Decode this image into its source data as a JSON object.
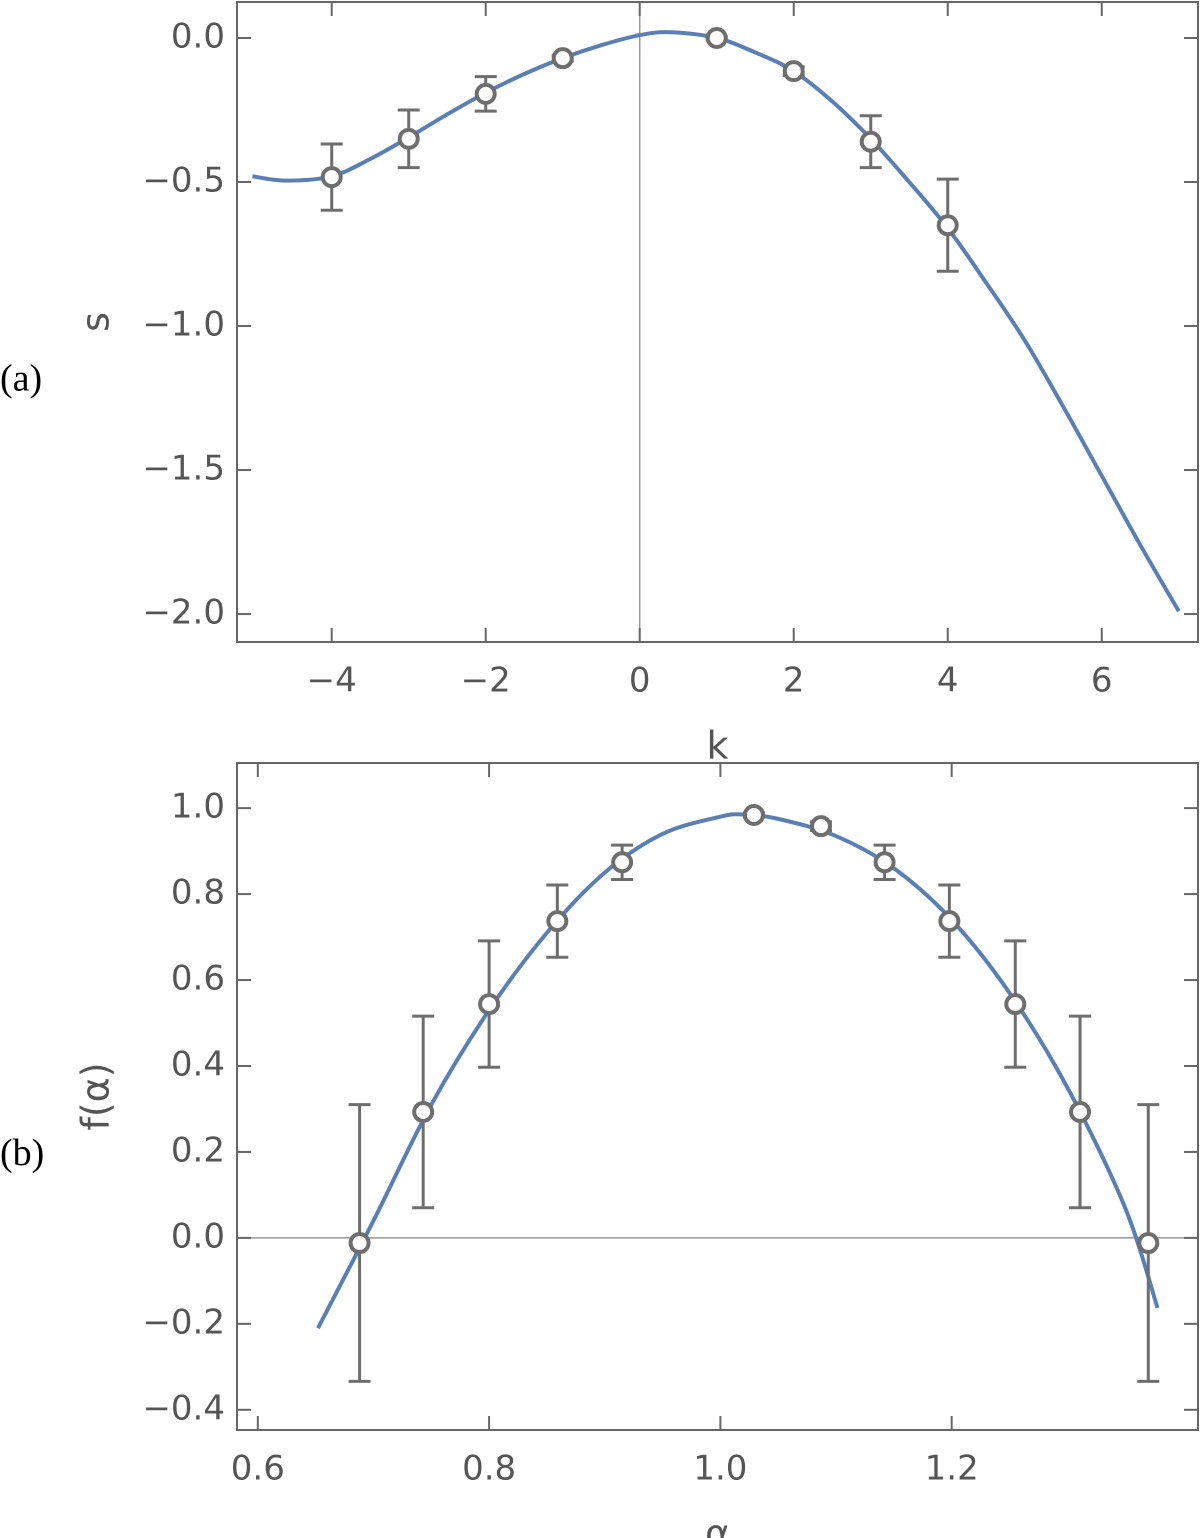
{
  "chart_data": [
    {
      "type": "errorbar",
      "panel_label": "(a)",
      "xlabel": "k",
      "ylabel": "s",
      "point_color": "#6e6e6e",
      "line_color": "#5a7fb5",
      "xlim": [
        -5.23,
        7.25
      ],
      "ylim": [
        -2.097,
        0.125
      ],
      "xticks": [
        {
          "value": -4,
          "label": "−4"
        },
        {
          "value": -2,
          "label": "−2"
        },
        0,
        2,
        4,
        6
      ],
      "yticks": [
        {
          "value": 0,
          "label": "0.0"
        },
        {
          "value": -0.5,
          "label": "−0.5"
        },
        {
          "value": -1,
          "label": "−1.0"
        },
        {
          "value": -1.5,
          "label": "−1.5"
        },
        {
          "value": -2,
          "label": "−2.0"
        }
      ],
      "points": {
        "x": [
          -4,
          -3,
          -2,
          -1,
          1,
          2,
          3,
          4
        ],
        "y": [
          -0.483,
          -0.35,
          -0.194,
          -0.07,
          0.0,
          -0.115,
          -0.36,
          -0.65
        ],
        "err": [
          0.115,
          0.1,
          0.06,
          0.01,
          0.005,
          0.015,
          0.09,
          0.16
        ]
      },
      "fit": {
        "x": [
          -5.03,
          -4.6,
          -4,
          -3.5,
          -3,
          -2.5,
          -2,
          -1.5,
          -1,
          -0.5,
          0,
          0.4,
          1,
          1.5,
          2,
          2.5,
          3,
          3.5,
          4,
          4.5,
          5,
          5.5,
          6,
          6.5,
          7
        ],
        "y": [
          -0.48,
          -0.495,
          -0.48,
          -0.42,
          -0.345,
          -0.265,
          -0.19,
          -0.125,
          -0.07,
          -0.025,
          0.01,
          0.02,
          0.0,
          -0.05,
          -0.115,
          -0.22,
          -0.35,
          -0.5,
          -0.66,
          -0.85,
          -1.05,
          -1.28,
          -1.52,
          -1.76,
          -1.99
        ]
      }
    },
    {
      "type": "errorbar",
      "panel_label": "(b)",
      "xlabel": "α",
      "ylabel": "f(α)",
      "point_color": "#6e6e6e",
      "line_color": "#5a7fb5",
      "xlim": [
        0.582,
        1.413
      ],
      "ylim": [
        -0.447,
        1.105
      ],
      "xticks": [
        0.6,
        0.8,
        {
          "value": 1,
          "label": "1.0"
        },
        1.2
      ],
      "yticks": [
        {
          "value": 1,
          "label": "1.0"
        },
        0.8,
        0.6,
        0.4,
        0.2,
        {
          "value": 0,
          "label": "0.0"
        },
        {
          "value": -0.2,
          "label": "−0.2"
        },
        {
          "value": -0.4,
          "label": "−0.4"
        }
      ],
      "points": {
        "x": [
          0.688,
          0.743,
          0.8,
          0.859,
          0.915,
          1.029,
          1.087,
          1.142,
          1.198,
          1.255,
          1.311,
          1.37
        ],
        "y": [
          -0.012,
          0.293,
          0.544,
          0.737,
          0.874,
          0.984,
          0.958,
          0.874,
          0.737,
          0.544,
          0.293,
          -0.012
        ],
        "err": [
          0.322,
          0.223,
          0.147,
          0.084,
          0.04,
          0.005,
          0.01,
          0.04,
          0.084,
          0.147,
          0.223,
          0.322
        ]
      },
      "fit": {
        "x": [
          0.652,
          0.7,
          0.75,
          0.8,
          0.85,
          0.9,
          0.95,
          1.0,
          1.02,
          1.05,
          1.1,
          1.15,
          1.2,
          1.25,
          1.3,
          1.35,
          1.378
        ],
        "y": [
          -0.21,
          0.04,
          0.31,
          0.53,
          0.71,
          0.85,
          0.94,
          0.98,
          0.985,
          0.975,
          0.935,
          0.86,
          0.74,
          0.57,
          0.35,
          0.07,
          -0.163
        ]
      }
    }
  ]
}
